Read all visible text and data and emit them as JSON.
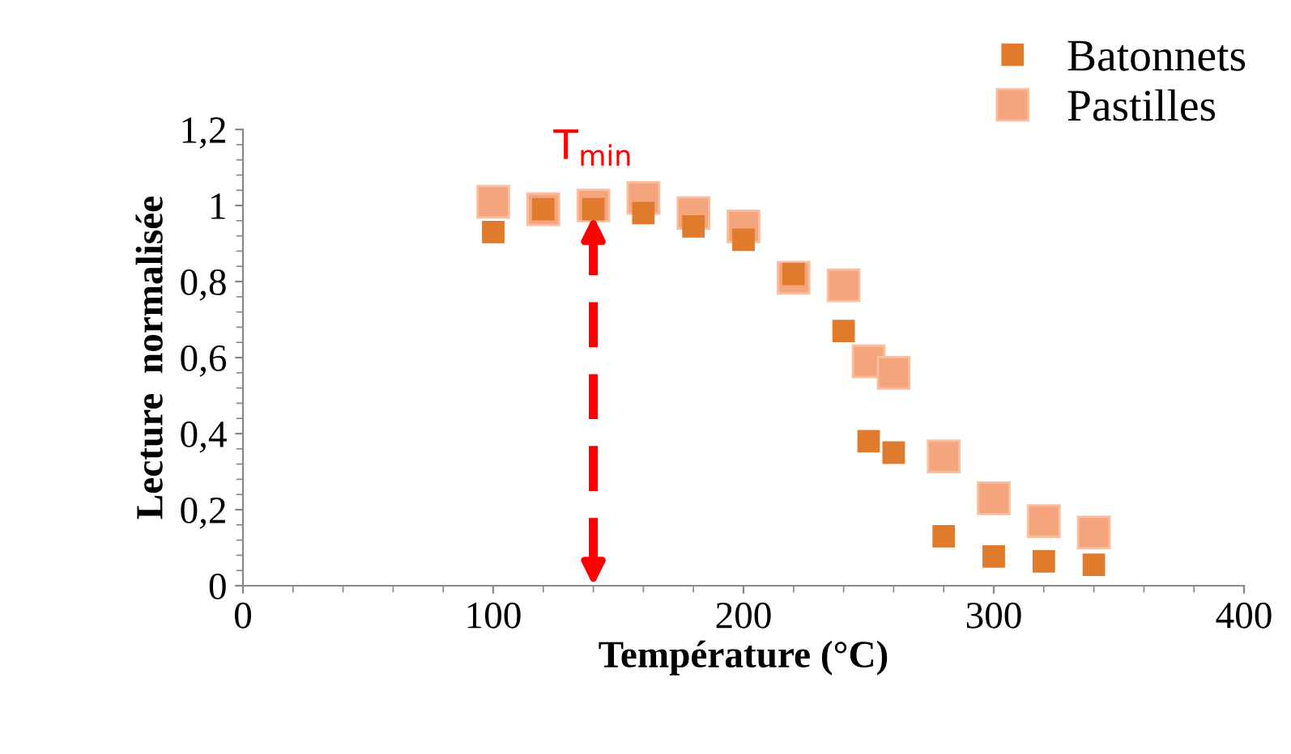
{
  "chart_data": {
    "type": "scatter",
    "xlabel": "Température (°C)",
    "ylabel": "Lecture  normalisée",
    "x": [
      100,
      120,
      140,
      160,
      180,
      200,
      220,
      240,
      250,
      260,
      280,
      300,
      320,
      340
    ],
    "series": [
      {
        "name": "Batonnets",
        "color": "#e07b2e",
        "marker": "square",
        "values": [
          0.93,
          0.99,
          0.99,
          0.98,
          0.945,
          0.91,
          0.82,
          0.67,
          0.38,
          0.35,
          0.13,
          0.077,
          0.064,
          0.055
        ]
      },
      {
        "name": "Pastilles",
        "color": "#f4a57e",
        "marker": "square",
        "values": [
          1.01,
          0.99,
          1.0,
          1.02,
          0.98,
          0.945,
          0.81,
          0.79,
          0.59,
          0.56,
          0.34,
          0.23,
          0.17,
          0.14
        ]
      }
    ],
    "xlim": [
      0,
      400
    ],
    "xticks": [
      0,
      100,
      200,
      300,
      400
    ],
    "ylim": [
      0,
      1.2
    ],
    "yticks": [
      0,
      {
        "value": 0.2,
        "label": "0,2"
      },
      {
        "value": 0.4,
        "label": "0,4"
      },
      {
        "value": 0.6,
        "label": "0,6"
      },
      {
        "value": 0.8,
        "label": "0,8"
      },
      1,
      {
        "value": 1.2,
        "label": "1,2"
      }
    ],
    "ref_lines": [
      {
        "axis": "x",
        "value": 140,
        "label": "T$_{min}$",
        "color": "#ff0000",
        "line_style": "dashed"
      }
    ],
    "grid": false,
    "legend": "top right"
  }
}
